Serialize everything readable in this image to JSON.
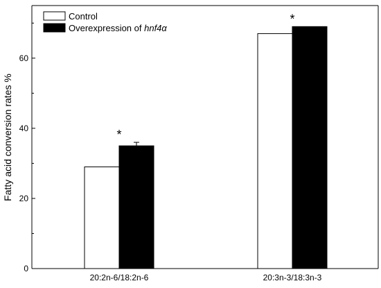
{
  "chart_data": {
    "type": "bar",
    "categories": [
      "20:2n-6/18:2n-6",
      "20:3n-3/18:3n-3"
    ],
    "series": [
      {
        "name": "Control",
        "values": [
          29,
          67
        ],
        "color": "#ffffff"
      },
      {
        "name": "Overexpression of hnf4α",
        "values": [
          35,
          69
        ],
        "error": [
          1,
          0
        ],
        "color": "#000000"
      }
    ],
    "significance": [
      {
        "category": "20:2n-6/18:2n-6",
        "mark": "*"
      },
      {
        "category": "20:3n-3/18:3n-3",
        "mark": "*"
      }
    ],
    "ylabel": "Fatty acid conversion rates %",
    "xlabel": "",
    "ylim": [
      0,
      75
    ],
    "yticks": [
      0,
      20,
      40,
      60
    ],
    "legend_position": "top-left",
    "legend": {
      "control": "Control",
      "overexpression_prefix": "Overexpression of ",
      "overexpression_gene": "hnf4α"
    },
    "grid": false
  }
}
